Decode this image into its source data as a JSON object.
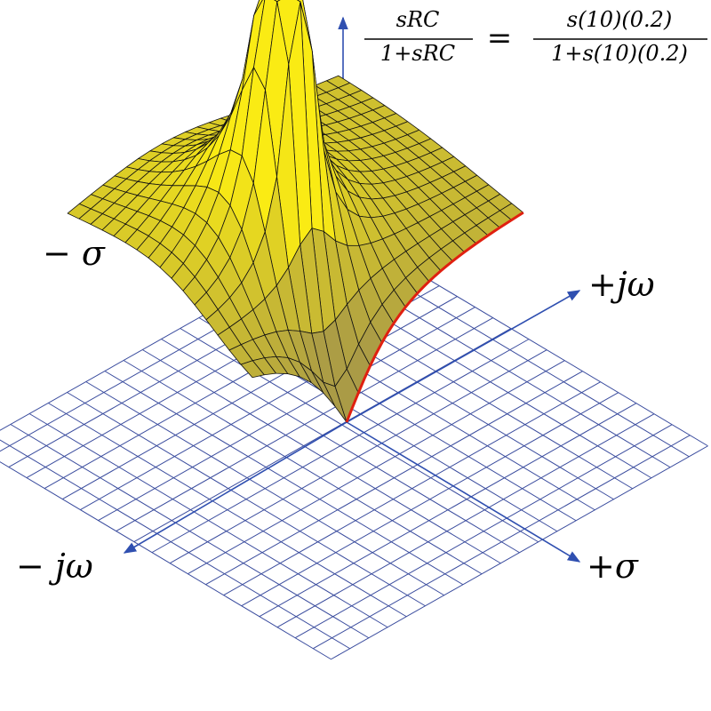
{
  "formula": {
    "lhs_numerator": "sRC",
    "lhs_denominator": "1+sRC",
    "equals": "=",
    "rhs_numerator": "s(10)(0.2)",
    "rhs_denominator": "1+s(10)(0.2)"
  },
  "axes": {
    "minus_sigma": "− σ",
    "plus_jomega": "+jω",
    "minus_jomega": "− jω",
    "plus_sigma": "+σ"
  }
}
